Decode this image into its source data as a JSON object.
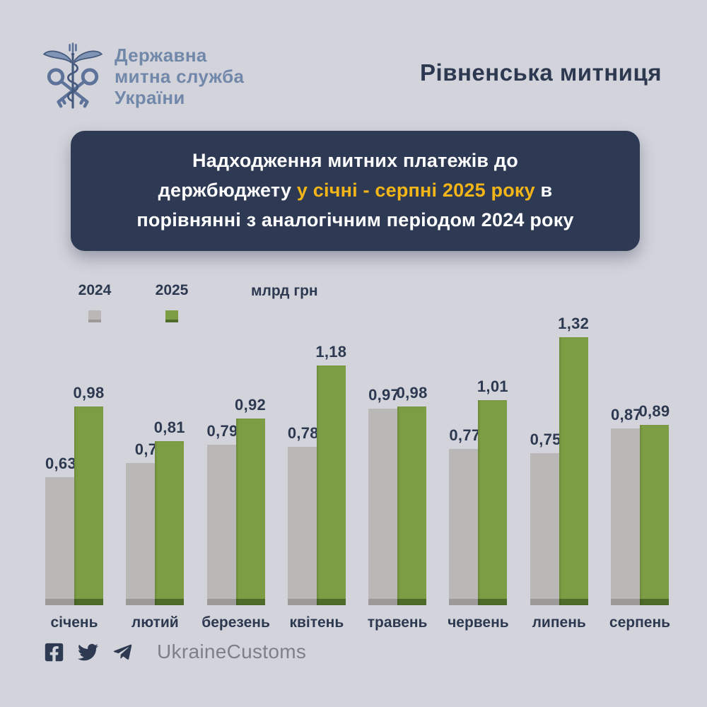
{
  "header": {
    "logo_lines": {
      "l1": "Державна",
      "l2": "митна служба",
      "l3": "України"
    },
    "region_title": "Рівненська митниця"
  },
  "title_box": {
    "line1": "Надходження митних платежів до",
    "line2_white": "держбюджету ",
    "line2_highlight": "у січні - серпні 2025 року",
    "line2_tail": " в",
    "line3": "порівнянні з аналогічним періодом 2024 року",
    "highlight_color": "#f3b517"
  },
  "legend": {
    "items": [
      {
        "label": "2024",
        "color": "#b9b8b7",
        "color_dark": "#9b9a99"
      },
      {
        "label": "2025",
        "color": "#7d9d44",
        "color_dark": "#4f6b29"
      }
    ],
    "unit": "млрд грн"
  },
  "chart_data": {
    "type": "bar",
    "categories": [
      "січень",
      "лютий",
      "березень",
      "квітень",
      "травень",
      "червень",
      "липень",
      "серпень"
    ],
    "series": [
      {
        "name": "2024",
        "color": "#b9b8b7",
        "color_dark": "#9b9a99",
        "values": [
          0.63,
          0.7,
          0.79,
          0.78,
          0.97,
          0.77,
          0.75,
          0.87
        ]
      },
      {
        "name": "2025",
        "color": "#7d9d44",
        "color_dark": "#4f6b29",
        "values": [
          0.98,
          0.81,
          0.92,
          1.18,
          0.98,
          1.01,
          1.32,
          0.89
        ]
      }
    ],
    "ylabel": "млрд грн",
    "ylim": [
      0,
      1.5
    ],
    "grid": false,
    "legend_position": "top-left",
    "value_label_decimal_separator": ","
  },
  "footer": {
    "icons": [
      "facebook-icon",
      "twitter-icon",
      "telegram-icon"
    ],
    "handle": "UkraineCustoms"
  },
  "colors": {
    "background": "#d3d4db",
    "title_box_bg": "#2e3a54",
    "navy_text": "#2d3950",
    "logo_blue": "#7288aa",
    "bar_2024": "#b9b8b7",
    "bar_2025": "#7d9d44",
    "highlight_yellow": "#f3b517",
    "footer_text": "#7d808a"
  }
}
